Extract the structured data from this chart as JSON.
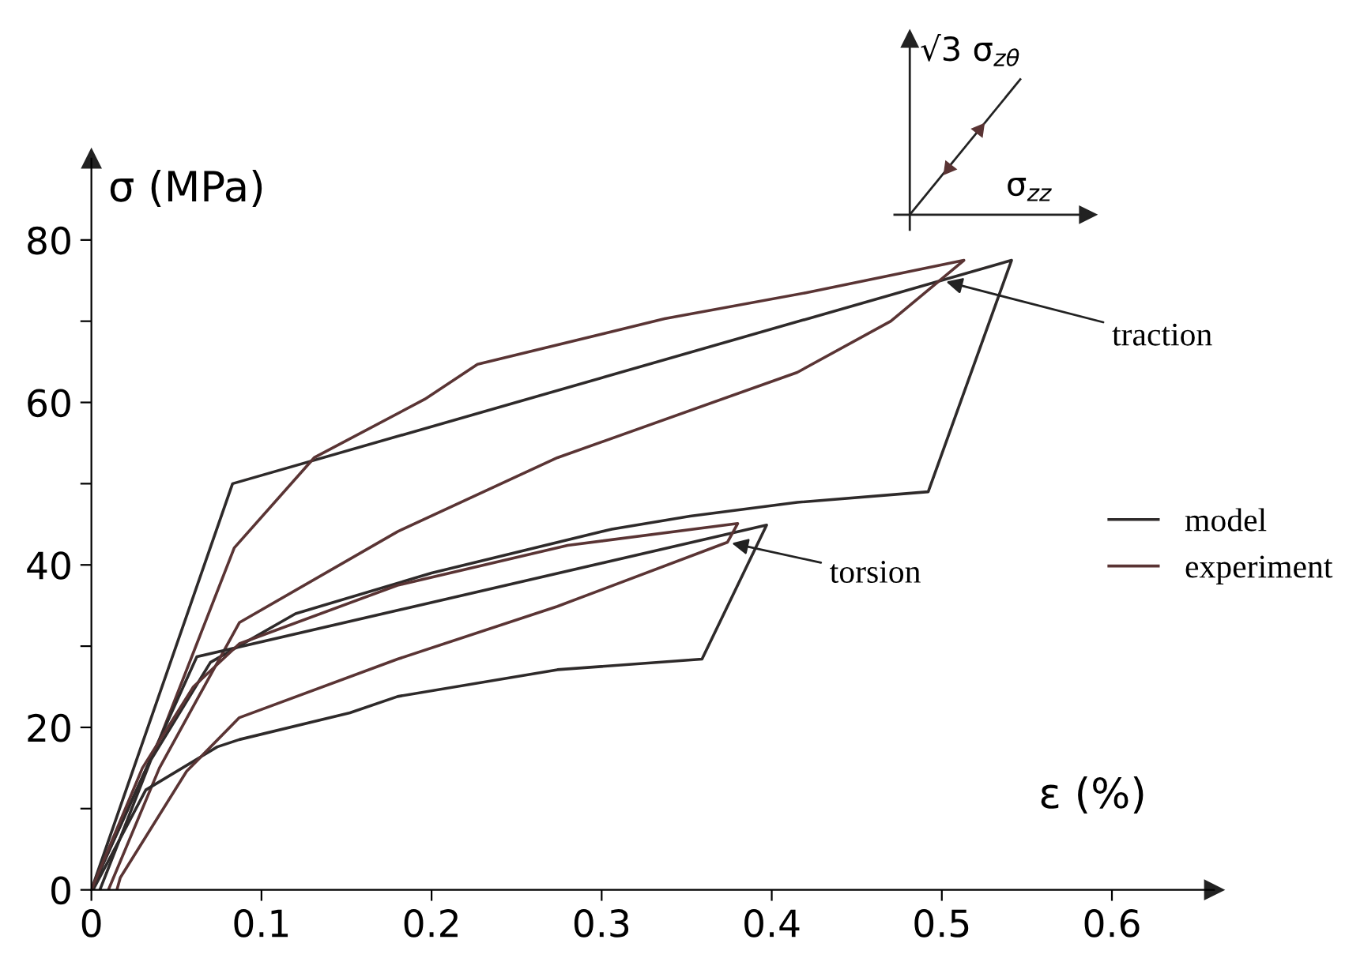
{
  "chart_data": {
    "type": "line",
    "xlabel": "ε (%)",
    "ylabel": "σ (MPa)",
    "xlim": [
      0,
      0.66
    ],
    "ylim": [
      0,
      90
    ],
    "xticks": [
      0,
      0.1,
      0.2,
      0.3,
      0.4,
      0.5,
      0.6
    ],
    "yticks": [
      0,
      {
        "value": 10,
        "label": null
      },
      20,
      {
        "value": 30,
        "label": null
      },
      40,
      {
        "value": 50,
        "label": null
      },
      60,
      {
        "value": 70,
        "label": null
      },
      80
    ],
    "grid": false,
    "legend": "right",
    "marker": "none",
    "line_style": "solid",
    "series": [
      {
        "name": "model",
        "color": "#2e2a2a",
        "x": [
          0,
          0.083,
          0.541,
          0.492,
          0.415,
          0.352,
          0.306,
          0.2,
          0.12,
          0.07,
          0.035,
          0.005
        ],
        "values": [
          0,
          50,
          77.5,
          49,
          47.7,
          46.0,
          44.4,
          39,
          34,
          28,
          16,
          0
        ]
      },
      {
        "name": "experiment",
        "color": "#5a3434",
        "x": [
          0,
          0.04,
          0.084,
          0.131,
          0.196,
          0.227,
          0.337,
          0.42,
          0.513,
          0.47,
          0.415,
          0.274,
          0.18,
          0.087,
          0.04,
          0.01
        ],
        "values": [
          0,
          18.5,
          42.1,
          53.2,
          60.4,
          64.7,
          70.3,
          73.5,
          77.5,
          70,
          63.7,
          53.2,
          44.1,
          32.9,
          15,
          0
        ]
      },
      {
        "color": "#2e2a2a",
        "x": [
          0,
          0.062,
          0.397,
          0.359,
          0.274,
          0.18,
          0.152,
          0.087,
          0.074,
          0.032,
          0.001
        ],
        "values": [
          0,
          28.7,
          44.9,
          28.4,
          27.1,
          23.8,
          21.8,
          18.5,
          17.6,
          12.3,
          0
        ]
      },
      {
        "color": "#5a3434",
        "x": [
          0,
          0.03,
          0.06,
          0.087,
          0.18,
          0.28,
          0.38,
          0.374,
          0.274,
          0.18,
          0.087,
          0.056,
          0.017,
          0.015
        ],
        "values": [
          0,
          15,
          25,
          30.3,
          37.5,
          42.4,
          45.1,
          42.8,
          34.9,
          28.4,
          21.2,
          14.6,
          1.5,
          0
        ]
      }
    ],
    "annotations": [
      {
        "text": "traction",
        "x": 0.5,
        "y": 75
      },
      {
        "text": "torsion",
        "x": 0.374,
        "y": 42.8
      },
      "√3 σ$_{zθ}$",
      "σ$_{zz}$"
    ]
  }
}
